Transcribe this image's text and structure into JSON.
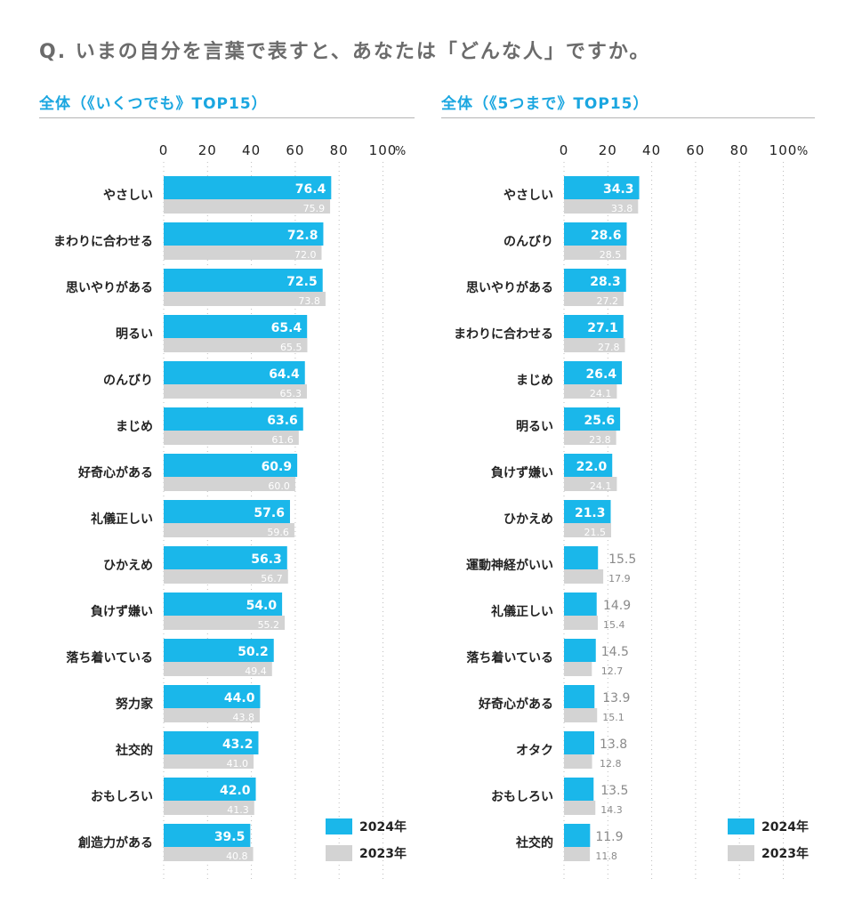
{
  "question": "Q. いまの自分を言葉で表すと、あなたは「どんな人」ですか。",
  "colors": {
    "y2024": "#1ab7ea",
    "y2023": "#d3d3d3",
    "accent": "#1aa6e0"
  },
  "legend": {
    "y2024": "2024年",
    "y2023": "2023年"
  },
  "chart_data": [
    {
      "type": "bar",
      "orientation": "horizontal",
      "title": "全体（《いくつでも》TOP15）",
      "x_ticks": [
        "0",
        "20",
        "40",
        "60",
        "80",
        "100"
      ],
      "unit": "%",
      "xlim": [
        0,
        100
      ],
      "grid": true,
      "legend_position": "bottom-right",
      "categories": [
        "やさしい",
        "まわりに合わせる",
        "思いやりがある",
        "明るい",
        "のんびり",
        "まじめ",
        "好奇心がある",
        "礼儀正しい",
        "ひかえめ",
        "負けず嫌い",
        "落ち着いている",
        "努力家",
        "社交的",
        "おもしろい",
        "創造力がある"
      ],
      "series": [
        {
          "name": "2024年",
          "values": [
            76.4,
            72.8,
            72.5,
            65.4,
            64.4,
            63.6,
            60.9,
            57.6,
            56.3,
            54.0,
            50.2,
            44.0,
            43.2,
            42.0,
            39.5
          ]
        },
        {
          "name": "2023年",
          "values": [
            75.9,
            72.0,
            73.8,
            65.5,
            65.3,
            61.6,
            60.0,
            59.6,
            56.7,
            55.2,
            49.4,
            43.8,
            41.0,
            41.3,
            40.8
          ]
        }
      ]
    },
    {
      "type": "bar",
      "orientation": "horizontal",
      "title": "全体（《5つまで》TOP15）",
      "x_ticks": [
        "0",
        "20",
        "40",
        "60",
        "80",
        "100"
      ],
      "unit": "%",
      "xlim": [
        0,
        100
      ],
      "grid": true,
      "legend_position": "bottom-right",
      "categories": [
        "やさしい",
        "のんびり",
        "思いやりがある",
        "まわりに合わせる",
        "まじめ",
        "明るい",
        "負けず嫌い",
        "ひかえめ",
        "運動神経がいい",
        "礼儀正しい",
        "落ち着いている",
        "好奇心がある",
        "オタク",
        "おもしろい",
        "社交的"
      ],
      "series": [
        {
          "name": "2024年",
          "values": [
            34.3,
            28.6,
            28.3,
            27.1,
            26.4,
            25.6,
            22.0,
            21.3,
            15.5,
            14.9,
            14.5,
            13.9,
            13.8,
            13.5,
            11.9
          ]
        },
        {
          "name": "2023年",
          "values": [
            33.8,
            28.5,
            27.2,
            27.8,
            24.1,
            23.8,
            24.1,
            21.5,
            17.9,
            15.4,
            12.7,
            15.1,
            12.8,
            14.3,
            11.8
          ]
        }
      ]
    }
  ]
}
